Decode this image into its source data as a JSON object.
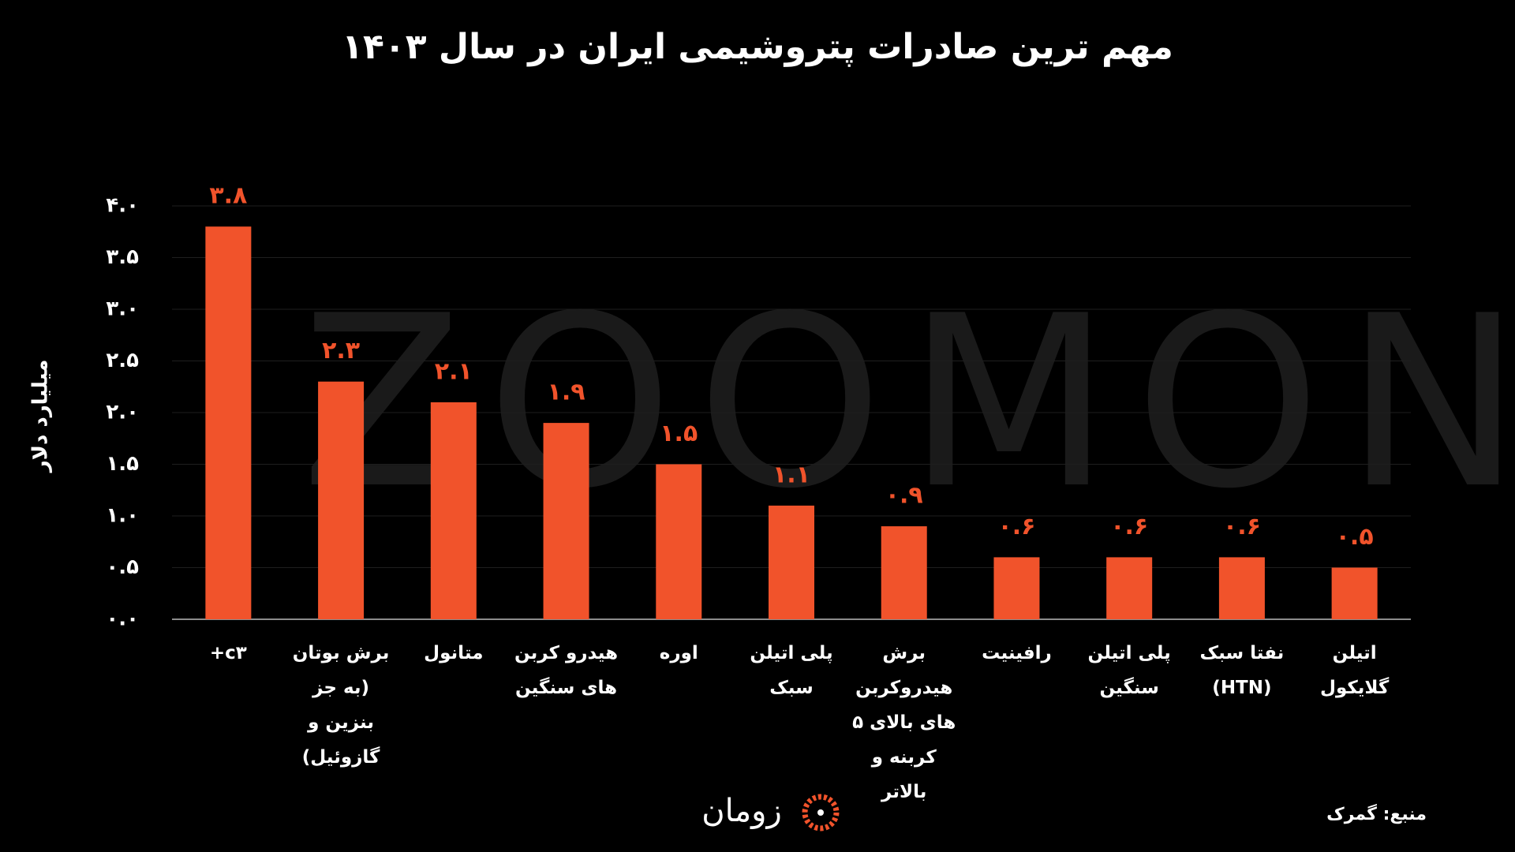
{
  "chart_data": {
    "type": "bar",
    "title": "مهم ترین صادرات پتروشیمی ایران در سال ۱۴۰۳",
    "y_label": "میلیارد دلار",
    "watermark": "ZOOMON",
    "source": "منبع: گمرک",
    "logo": "زومان",
    "categories": [
      "c۳+",
      "برش بوتان (به جز بنزین و گازوئیل)",
      "متانول",
      "هیدرو کربن های سنگین",
      "اوره",
      "پلی اتیلن سبک",
      "برش هیدروکربن های بالای ۵ کربنه و بالاتر",
      "رافینیت",
      "پلی اتیلن سنگین",
      "نفتا سبک (HTN)",
      "اتیلن گلایکول"
    ],
    "values": [
      3.8,
      2.3,
      2.1,
      1.9,
      1.5,
      1.1,
      0.9,
      0.6,
      0.6,
      0.6,
      0.5
    ],
    "value_labels": [
      "۳.۸",
      "۲.۳",
      "۲.۱",
      "۱.۹",
      "۱.۵",
      "۱.۱",
      "۰.۹",
      "۰.۶",
      "۰.۶",
      "۰.۶",
      "۰.۵"
    ],
    "color": "#f1532b",
    "ylim": [
      0,
      4
    ],
    "yticks": [
      {
        "value": 0,
        "label": "۰.۰"
      },
      {
        "value": 0.5,
        "label": "۰.۵"
      },
      {
        "value": 1,
        "label": "۱.۰"
      },
      {
        "value": 1.5,
        "label": "۱.۵"
      },
      {
        "value": 2,
        "label": "۲.۰"
      },
      {
        "value": 2.5,
        "label": "۲.۵"
      },
      {
        "value": 3,
        "label": "۳.۰"
      },
      {
        "value": 3.5,
        "label": "۳.۵"
      },
      {
        "value": 4,
        "label": "۴.۰"
      }
    ],
    "grid": true
  }
}
